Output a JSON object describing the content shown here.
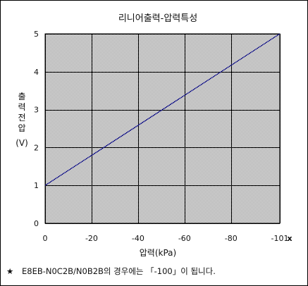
{
  "chart_data": {
    "type": "line",
    "title": "리니어출력-압력특성",
    "xlabel": "압력(kPa)",
    "ylabel_chars": [
      "출",
      "력",
      "전",
      "압"
    ],
    "ylabel_unit": "(V)",
    "x": [
      0,
      -101
    ],
    "series": [
      {
        "values": [
          1,
          5
        ],
        "color": "#1a1a8c"
      }
    ],
    "xlim": [
      0,
      -101
    ],
    "ylim": [
      0,
      5
    ],
    "x_ticks": [
      "0",
      "-20",
      "-40",
      "-60",
      "-80",
      "-101"
    ],
    "x_tick_values": [
      0,
      -20,
      -40,
      -60,
      -80,
      -101
    ],
    "y_ticks": [
      "0",
      "1",
      "2",
      "3",
      "4",
      "5"
    ],
    "y_tick_values": [
      0,
      1,
      2,
      3,
      4,
      5
    ],
    "x_extra_label": "x",
    "grid": true,
    "plot_background": "dotted-gray"
  },
  "note": {
    "marker": "★",
    "text": "E8EB-N0C2B/N0B2B의 경우에는 「-100」이 됩니다."
  },
  "colors": {
    "line": "#1a1a8c",
    "grid": "#000000",
    "dot": "#8a8a8a",
    "background": "#ffffff"
  }
}
